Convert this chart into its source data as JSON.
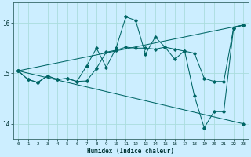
{
  "title": "",
  "xlabel": "Humidex (Indice chaleur)",
  "bg_color": "#cceeff",
  "grid_color": "#aadddd",
  "line_color": "#006666",
  "xlim": [
    -0.5,
    23.5
  ],
  "ylim": [
    13.7,
    16.4
  ],
  "yticks": [
    14,
    15,
    16
  ],
  "xticks": [
    0,
    1,
    2,
    3,
    4,
    5,
    6,
    7,
    8,
    9,
    10,
    11,
    12,
    13,
    14,
    15,
    16,
    17,
    18,
    19,
    20,
    21,
    22,
    23
  ],
  "series": [
    {
      "x": [
        0,
        1,
        2,
        3,
        4,
        5,
        6,
        7,
        8,
        9,
        10,
        11,
        12,
        13,
        14,
        15,
        16,
        17,
        18,
        19,
        20,
        21,
        22,
        23
      ],
      "y": [
        15.05,
        14.88,
        14.82,
        14.95,
        14.88,
        14.9,
        14.84,
        15.15,
        15.5,
        15.12,
        15.5,
        16.12,
        16.05,
        15.38,
        15.72,
        15.52,
        15.28,
        15.45,
        14.55,
        13.92,
        14.24,
        14.24,
        15.9,
        15.96
      ]
    },
    {
      "x": [
        0,
        1,
        2,
        3,
        4,
        5,
        6,
        7,
        8,
        9,
        10,
        11,
        12,
        13,
        14,
        15,
        16,
        17,
        18,
        19,
        20,
        21,
        22,
        23
      ],
      "y": [
        15.05,
        14.88,
        14.82,
        14.95,
        14.88,
        14.9,
        14.84,
        14.85,
        15.1,
        15.42,
        15.46,
        15.52,
        15.5,
        15.5,
        15.48,
        15.52,
        15.48,
        15.44,
        15.4,
        14.9,
        14.84,
        14.84,
        15.9,
        15.96
      ]
    },
    {
      "x": [
        0,
        23
      ],
      "y": [
        15.05,
        14.0
      ]
    },
    {
      "x": [
        0,
        23
      ],
      "y": [
        15.05,
        15.96
      ]
    }
  ]
}
